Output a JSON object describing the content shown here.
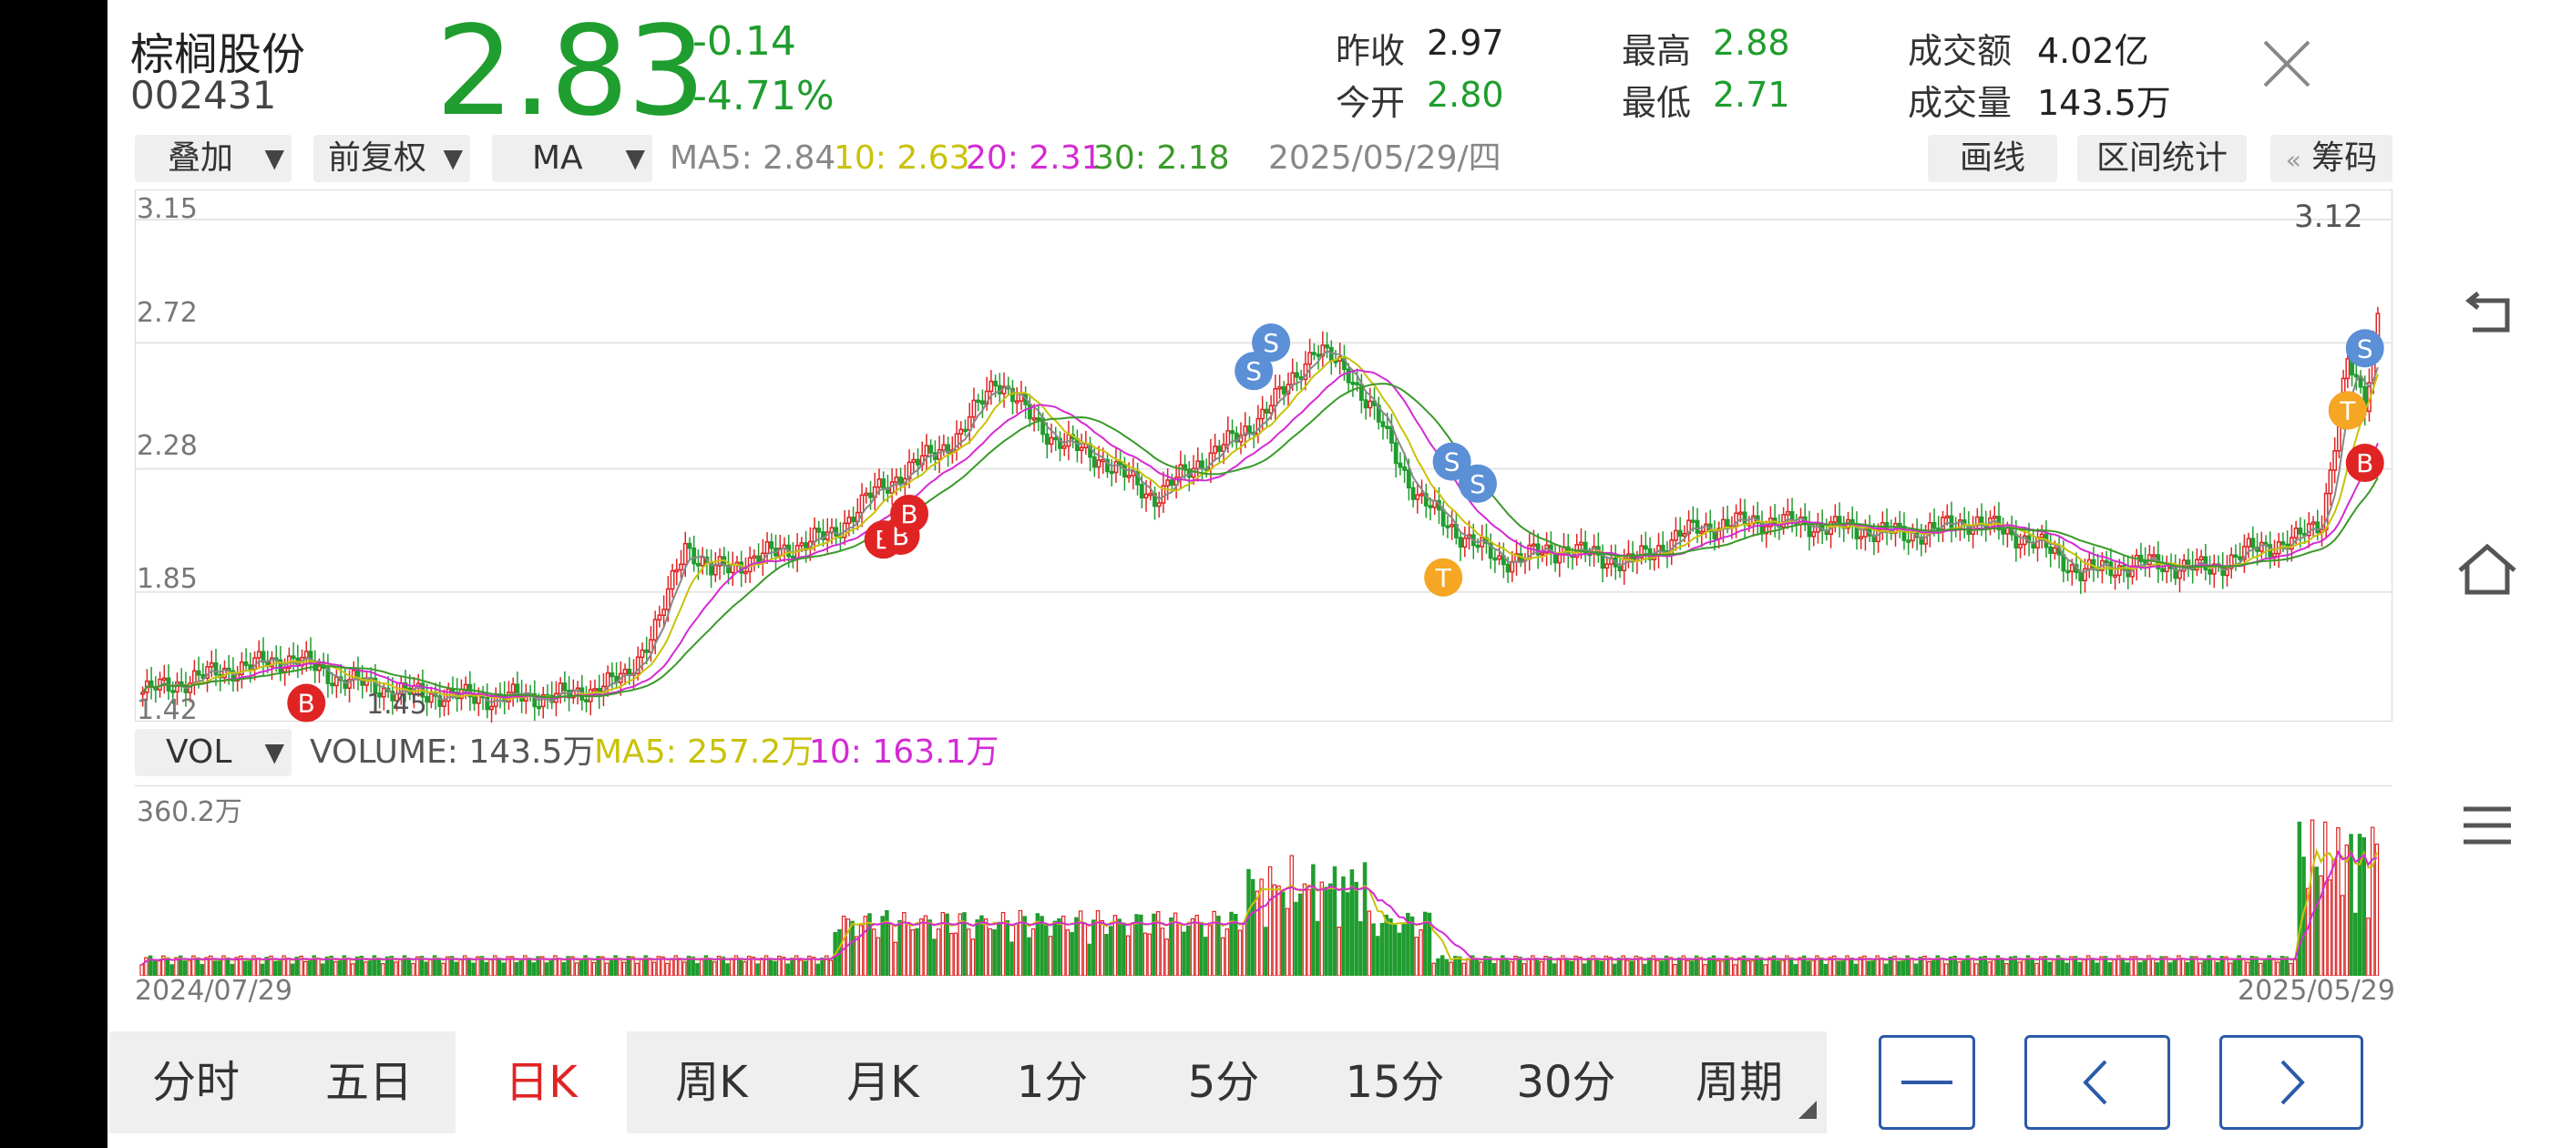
{
  "stock": {
    "name": "棕榈股份",
    "code": "002431",
    "price": "2.83",
    "change": "-0.14",
    "change_pct": "-4.71%"
  },
  "stats": {
    "prev_close_label": "昨收",
    "prev_close": "2.97",
    "open_label": "今开",
    "open": "2.80",
    "high_label": "最高",
    "high": "2.88",
    "low_label": "最低",
    "low": "2.71",
    "amount_label": "成交额",
    "amount": "4.02亿",
    "volume_label": "成交量",
    "volume": "143.5万"
  },
  "toolbar": {
    "overlay": "叠加",
    "adjust": "前复权",
    "indicator": "MA",
    "ma5": "MA5: 2.84",
    "ma10": "10: 2.63",
    "ma20": "20: 2.31",
    "ma30": "30: 2.18",
    "date": "2025/05/29/四",
    "draw_line": "画线",
    "range_stats": "区间统计",
    "chips": "筹码",
    "chips_prefix": "«"
  },
  "price_chart": {
    "y_labels": [
      "3.15",
      "2.72",
      "2.28",
      "1.85",
      "1.42"
    ],
    "max_label": "3.12",
    "min_label": "1.45"
  },
  "volume_bar": {
    "indicator": "VOL",
    "volume": "VOLUME: 143.5万",
    "ma5": "MA5: 257.2万",
    "ma10": "10: 163.1万",
    "max_label": "360.2万",
    "start_date": "2024/07/29",
    "end_date": "2025/05/29"
  },
  "tabs": [
    "分时",
    "五日",
    "日K",
    "周K",
    "月K",
    "1分",
    "5分",
    "15分",
    "30分",
    "周期"
  ],
  "active_tab": "日K",
  "colors": {
    "up": "#e02424",
    "down": "#1f9d2e",
    "ma5": "#888888",
    "ma10": "#c9c20a",
    "ma20": "#d42ad4",
    "ma30": "#3a9a2a",
    "accent": "#2b5aa8"
  },
  "chart_data": {
    "type": "candlestick",
    "y_range": [
      1.42,
      3.15
    ],
    "marker_labels": {
      "buy": "B",
      "sell": "S",
      "t": "T"
    }
  }
}
